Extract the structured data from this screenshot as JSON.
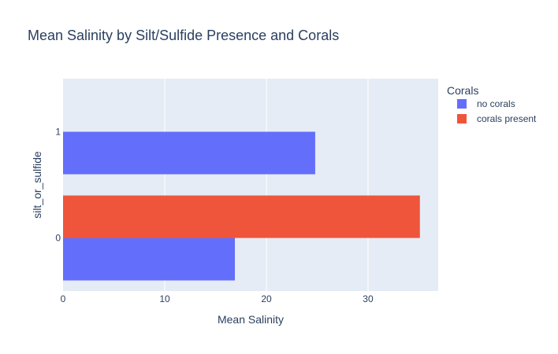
{
  "chart_data": {
    "type": "bar",
    "orientation": "horizontal",
    "barmode": "group",
    "title": "Mean Salinity by Silt/Sulfide Presence and Corals",
    "xlabel": "Mean Salinity",
    "ylabel": "silt_or_sulfide",
    "categories": [
      "0",
      "1"
    ],
    "xlim": [
      0,
      36.9
    ],
    "x_ticks": [
      0,
      10,
      20,
      30
    ],
    "grid": true,
    "legend": {
      "title": "Corals",
      "position": "right"
    },
    "series": [
      {
        "name": "no corals",
        "values": [
          16.9,
          24.8
        ],
        "color": "#636efa"
      },
      {
        "name": "corals present",
        "values": [
          35.1,
          null
        ],
        "color": "#ef553b"
      }
    ]
  }
}
